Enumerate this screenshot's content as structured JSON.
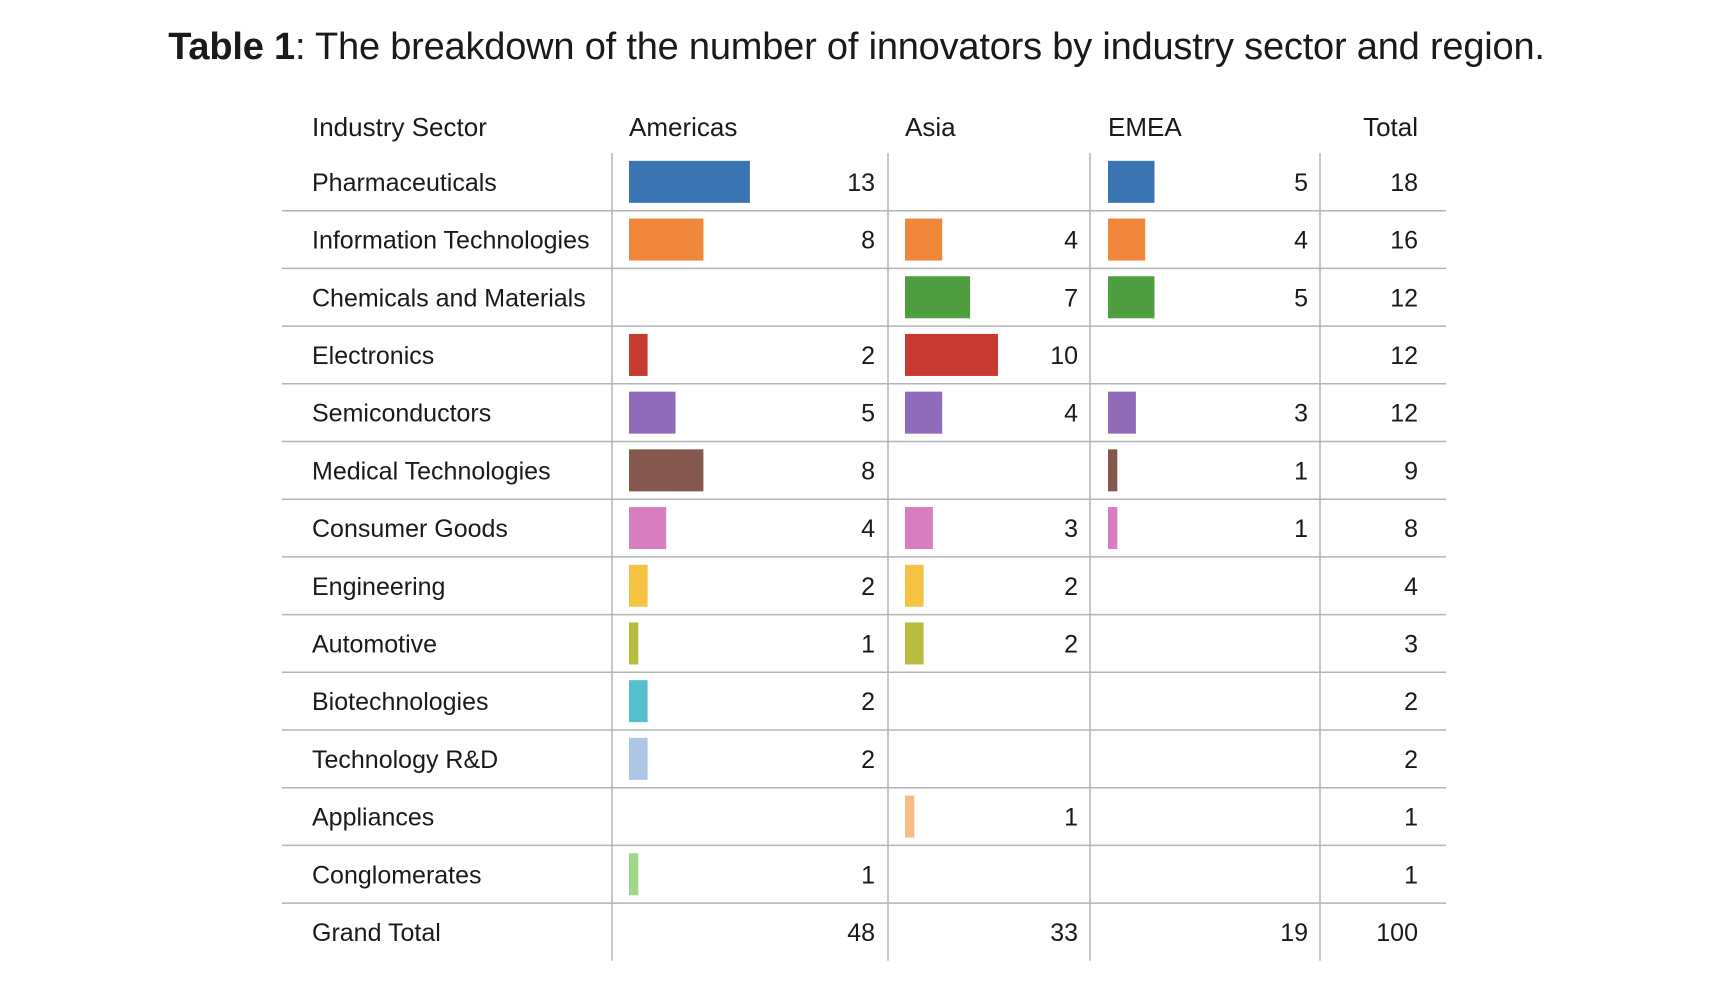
{
  "caption": {
    "bold": "Table 1",
    "rest": ": The breakdown of the number of innovators by industry sector and region."
  },
  "chart_data": {
    "type": "table",
    "title": "Table 1: The breakdown of the number of innovators by industry sector and region.",
    "columns": [
      "Industry Sector",
      "Americas",
      "Asia",
      "EMEA",
      "Total"
    ],
    "rows": [
      {
        "sector": "Pharmaceuticals",
        "americas": 13,
        "asia": null,
        "emea": 5,
        "total": 18,
        "color": "#3a74b2"
      },
      {
        "sector": "Information Technologies",
        "americas": 8,
        "asia": 4,
        "emea": 4,
        "total": 16,
        "color": "#f0873a"
      },
      {
        "sector": "Chemicals and Materials",
        "americas": null,
        "asia": 7,
        "emea": 5,
        "total": 12,
        "color": "#4e9e40"
      },
      {
        "sector": "Electronics",
        "americas": 2,
        "asia": 10,
        "emea": null,
        "total": 12,
        "color": "#c73a32"
      },
      {
        "sector": "Semiconductors",
        "americas": 5,
        "asia": 4,
        "emea": 3,
        "total": 12,
        "color": "#8f6bba"
      },
      {
        "sector": "Medical Technologies",
        "americas": 8,
        "asia": null,
        "emea": 1,
        "total": 9,
        "color": "#85584f"
      },
      {
        "sector": "Consumer Goods",
        "americas": 4,
        "asia": 3,
        "emea": 1,
        "total": 8,
        "color": "#d67ec0"
      },
      {
        "sector": "Engineering",
        "americas": 2,
        "asia": 2,
        "emea": null,
        "total": 4,
        "color": "#f5c244"
      },
      {
        "sector": "Automotive",
        "americas": 1,
        "asia": 2,
        "emea": null,
        "total": 3,
        "color": "#b8bd3f"
      },
      {
        "sector": "Biotechnologies",
        "americas": 2,
        "asia": null,
        "emea": null,
        "total": 2,
        "color": "#55bfce"
      },
      {
        "sector": "Technology R&D",
        "americas": 2,
        "asia": null,
        "emea": null,
        "total": 2,
        "color": "#aec6e6"
      },
      {
        "sector": "Appliances",
        "americas": null,
        "asia": 1,
        "emea": null,
        "total": 1,
        "color": "#f6bd85"
      },
      {
        "sector": "Conglomerates",
        "americas": 1,
        "asia": null,
        "emea": null,
        "total": 1,
        "color": "#9ed98a"
      }
    ],
    "grand_total": {
      "label": "Grand Total",
      "americas": 48,
      "asia": 33,
      "emea": 19,
      "total": 100
    }
  }
}
